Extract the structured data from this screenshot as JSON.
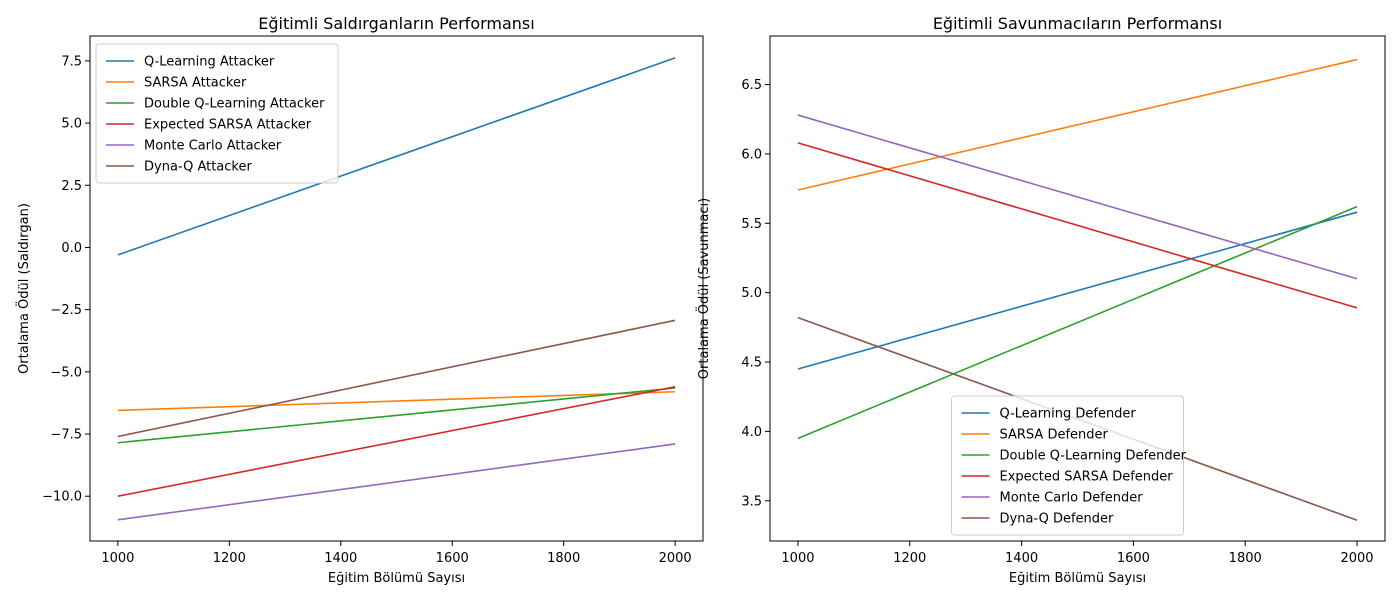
{
  "chart_data": [
    {
      "type": "line",
      "title": "Eğitimli Saldırganların Performansı",
      "xlabel": "Eğitim Bölümü Sayısı",
      "ylabel": "Ortalama Ödül (Saldırgan)",
      "xlim": [
        950,
        2050
      ],
      "ylim": [
        -11.8,
        8.5
      ],
      "xticks": [
        1000,
        1200,
        1400,
        1600,
        1800,
        2000
      ],
      "yticks": [
        -10.0,
        -7.5,
        -5.0,
        -2.5,
        0.0,
        2.5,
        5.0,
        7.5
      ],
      "xtick_labels": [
        "1000",
        "1200",
        "1400",
        "1600",
        "1800",
        "2000"
      ],
      "ytick_labels": [
        "−10.0",
        "−7.5",
        "−5.0",
        "−2.5",
        "0.0",
        "2.5",
        "5.0",
        "7.5"
      ],
      "grid": false,
      "legend_position": "upper-left",
      "series": [
        {
          "name": "Q-Learning Attacker",
          "color": "#1f77b4",
          "x": [
            1000,
            2000
          ],
          "y": [
            -0.3,
            7.62
          ]
        },
        {
          "name": "SARSA Attacker",
          "color": "#ff7f0e",
          "x": [
            1000,
            2000
          ],
          "y": [
            -6.55,
            -5.8
          ]
        },
        {
          "name": "Double Q-Learning Attacker",
          "color": "#2ca02c",
          "x": [
            1000,
            2000
          ],
          "y": [
            -7.85,
            -5.65
          ]
        },
        {
          "name": "Expected SARSA Attacker",
          "color": "#d62728",
          "x": [
            1000,
            2000
          ],
          "y": [
            -10.0,
            -5.6
          ]
        },
        {
          "name": "Monte Carlo Attacker",
          "color": "#9467bd",
          "x": [
            1000,
            2000
          ],
          "y": [
            -10.95,
            -7.9
          ]
        },
        {
          "name": "Dyna-Q Attacker",
          "color": "#8c564b",
          "x": [
            1000,
            2000
          ],
          "y": [
            -7.6,
            -2.93
          ]
        }
      ]
    },
    {
      "type": "line",
      "title": "Eğitimli Savunmacıların Performansı",
      "xlabel": "Eğitim Bölümü Sayısı",
      "ylabel": "Ortalama Ödül (Savunmacı)",
      "xlim": [
        950,
        2050
      ],
      "ylim": [
        3.21,
        6.85
      ],
      "xticks": [
        1000,
        1200,
        1400,
        1600,
        1800,
        2000
      ],
      "yticks": [
        3.5,
        4.0,
        4.5,
        5.0,
        5.5,
        6.0,
        6.5
      ],
      "xtick_labels": [
        "1000",
        "1200",
        "1400",
        "1600",
        "1800",
        "2000"
      ],
      "ytick_labels": [
        "3.5",
        "4.0",
        "4.5",
        "5.0",
        "5.5",
        "6.0",
        "6.5"
      ],
      "grid": false,
      "legend_position": "lower-center",
      "series": [
        {
          "name": "Q-Learning Defender",
          "color": "#1f77b4",
          "x": [
            1000,
            2000
          ],
          "y": [
            4.45,
            5.58
          ]
        },
        {
          "name": "SARSA Defender",
          "color": "#ff7f0e",
          "x": [
            1000,
            2000
          ],
          "y": [
            5.74,
            6.68
          ]
        },
        {
          "name": "Double Q-Learning Defender",
          "color": "#2ca02c",
          "x": [
            1000,
            2000
          ],
          "y": [
            3.95,
            5.62
          ]
        },
        {
          "name": "Expected SARSA Defender",
          "color": "#d62728",
          "x": [
            1000,
            2000
          ],
          "y": [
            6.08,
            4.89
          ]
        },
        {
          "name": "Monte Carlo Defender",
          "color": "#9467bd",
          "x": [
            1000,
            2000
          ],
          "y": [
            6.28,
            5.1
          ]
        },
        {
          "name": "Dyna-Q Defender",
          "color": "#8c564b",
          "x": [
            1000,
            2000
          ],
          "y": [
            4.82,
            3.36
          ]
        }
      ]
    }
  ]
}
